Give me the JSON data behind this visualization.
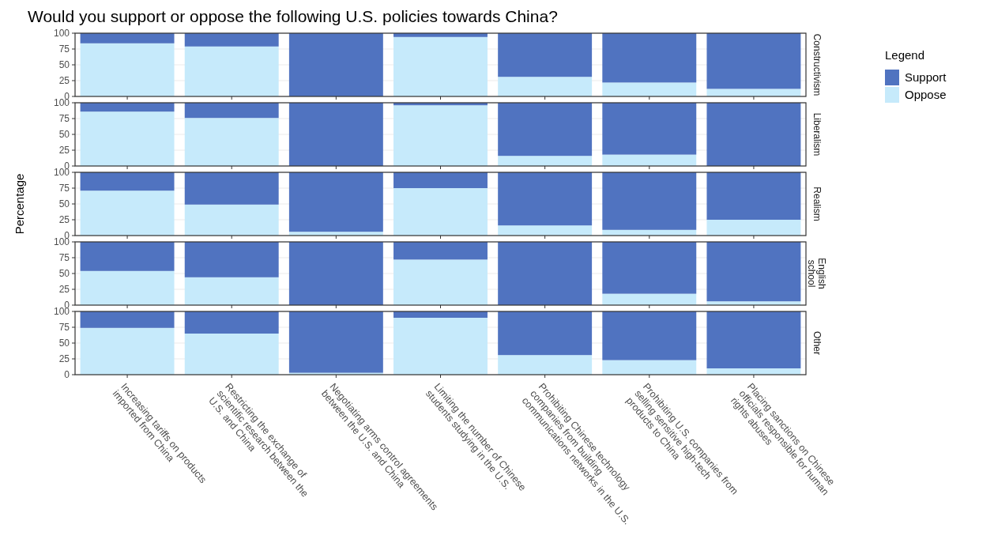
{
  "chart_data": [
    {
      "type": "bar",
      "title": "Would you support or oppose the following U.S. policies towards China?",
      "annotations": [
        "Constructivism"
      ],
      "categories": [
        null,
        null,
        null,
        null,
        null,
        null,
        null
      ],
      "stacked": true,
      "ylim": [
        0,
        100
      ],
      "yticks": [
        0,
        25,
        50,
        75,
        100
      ],
      "grid": "y",
      "tick_labels": "y",
      "legend": "right",
      "legend_title": "Legend",
      "series": [
        {
          "name": "Oppose",
          "color": "#c6eafb",
          "values": [
            84,
            79,
            0,
            94,
            31,
            22,
            12
          ]
        },
        {
          "name": "Support",
          "color": "#5073c0",
          "values": [
            16,
            21,
            100,
            6,
            69,
            78,
            88
          ]
        }
      ]
    },
    {
      "type": "bar",
      "annotations": [
        "Liberalism"
      ],
      "categories": [
        null,
        null,
        null,
        null,
        null,
        null,
        null
      ],
      "stacked": true,
      "ylim": [
        0,
        100
      ],
      "yticks": [
        0,
        25,
        50,
        75,
        100
      ],
      "grid": "y",
      "tick_labels": "y",
      "series": [
        {
          "color": "#c6eafb",
          "values": [
            86,
            76,
            0,
            96,
            16,
            18,
            0
          ]
        },
        {
          "color": "#5073c0",
          "values": [
            14,
            24,
            100,
            4,
            84,
            82,
            100
          ]
        }
      ]
    },
    {
      "type": "bar",
      "annotations": [
        "Realism"
      ],
      "ylabel": "Percentage",
      "categories": [
        null,
        null,
        null,
        null,
        null,
        null,
        null
      ],
      "stacked": true,
      "ylim": [
        0,
        100
      ],
      "yticks": [
        0,
        25,
        50,
        75,
        100
      ],
      "grid": "y",
      "tick_labels": "y",
      "series": [
        {
          "color": "#c6eafb",
          "values": [
            71,
            49,
            6,
            75,
            16,
            9,
            25
          ]
        },
        {
          "color": "#5073c0",
          "values": [
            29,
            51,
            94,
            25,
            84,
            91,
            75
          ]
        }
      ]
    },
    {
      "type": "bar",
      "annotations": [
        "English school"
      ],
      "categories": [
        null,
        null,
        null,
        null,
        null,
        null,
        null
      ],
      "stacked": true,
      "ylim": [
        0,
        100
      ],
      "yticks": [
        0,
        25,
        50,
        75,
        100
      ],
      "grid": "y",
      "tick_labels": "y",
      "series": [
        {
          "color": "#c6eafb",
          "values": [
            54,
            44,
            0,
            72,
            0,
            18,
            6
          ]
        },
        {
          "color": "#5073c0",
          "values": [
            46,
            56,
            100,
            28,
            100,
            82,
            94
          ]
        }
      ]
    },
    {
      "type": "bar",
      "annotations": [
        "Other"
      ],
      "categories": [
        "Increasing tariffs on products imported from China",
        "Restricting the exchange of scientific research between the U.S. and China",
        "Negotiating arms control agreements between the U.S. and China",
        "Limiting the number of Chinese students studying in the U.S.",
        "Prohibiting Chinese technology companies from building communications networks in the U.S.",
        "Prohibiting U.S. companies from selling sensitive high-tech products to China",
        "Placing sanctions on Chinese officials responsible for human rights abuses"
      ],
      "stacked": true,
      "ylim": [
        0,
        100
      ],
      "yticks": [
        0,
        25,
        50,
        75,
        100
      ],
      "grid": "y",
      "series": [
        {
          "color": "#c6eafb",
          "values": [
            74,
            65,
            3,
            90,
            31,
            23,
            10
          ]
        },
        {
          "color": "#5073c0",
          "values": [
            26,
            35,
            97,
            10,
            69,
            77,
            90
          ]
        }
      ]
    }
  ]
}
